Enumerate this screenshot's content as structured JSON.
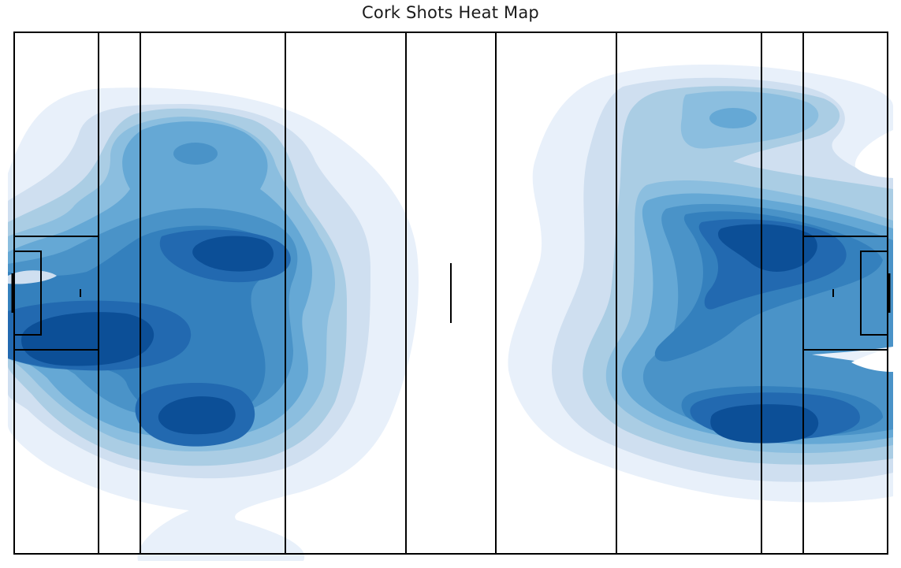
{
  "chart_data": {
    "type": "heatmap",
    "title": "Cork Shots Heat Map",
    "xlabel": "",
    "ylabel": "",
    "grid": false,
    "legend": "none",
    "axes_visible": false,
    "surface": "gaelic-pitch",
    "colormap": [
      "#e8f0fa",
      "#cfdff0",
      "#aacde4",
      "#8bbedf",
      "#65a8d5",
      "#4a93c8",
      "#3480bd",
      "#2269b0",
      "#0c4f97"
    ],
    "density_levels": 9,
    "hotspots": [
      {
        "name": "left-upper",
        "x": 0.215,
        "y": 0.225,
        "level": 5
      },
      {
        "name": "left-centre",
        "x": 0.267,
        "y": 0.42,
        "level": 9
      },
      {
        "name": "left-wide",
        "x": 0.083,
        "y": 0.58,
        "level": 9
      },
      {
        "name": "left-lower",
        "x": 0.21,
        "y": 0.735,
        "level": 9
      },
      {
        "name": "right-upper",
        "x": 0.826,
        "y": 0.165,
        "level": 5
      },
      {
        "name": "right-centre",
        "x": 0.87,
        "y": 0.41,
        "level": 9
      },
      {
        "name": "right-lower",
        "x": 0.871,
        "y": 0.75,
        "level": 9
      }
    ]
  }
}
